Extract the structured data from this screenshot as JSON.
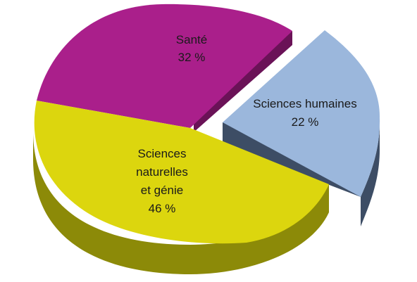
{
  "chart_data": {
    "type": "pie",
    "title": "",
    "slices": [
      {
        "name": "Santé",
        "value": 32,
        "value_label": "32 %",
        "color": "#aa1f8b",
        "side_color": "#6a1257",
        "label_lines": [
          "Santé",
          "32 %"
        ]
      },
      {
        "name": "Sciences humaines",
        "value": 22,
        "value_label": "22 %",
        "color": "#9bb7dc",
        "side_color": "#3d4d65",
        "label_lines": [
          "Sciences humaines",
          "22 %"
        ],
        "exploded": true
      },
      {
        "name": "Sciences naturelles et génie",
        "value": 46,
        "value_label": "46  %",
        "color": "#dcd60e",
        "side_color": "#8c8a08",
        "label_lines": [
          "Sciences",
          "naturelles",
          "et génie",
          "46  %"
        ]
      }
    ]
  }
}
